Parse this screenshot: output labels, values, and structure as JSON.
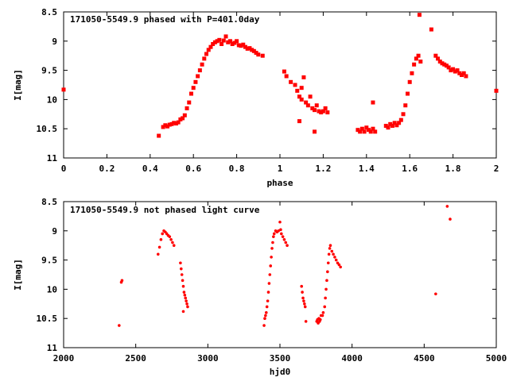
{
  "chart_data": [
    {
      "type": "scatter",
      "title": "171050-5549.9 phased with P=401.0day",
      "xlabel": "phase",
      "ylabel": "I[mag]",
      "xlim": [
        0,
        2
      ],
      "ylim": [
        8.5,
        11
      ],
      "y_inverted": true,
      "xticks": [
        0,
        0.2,
        0.4,
        0.6,
        0.8,
        1,
        1.2,
        1.4,
        1.6,
        1.8,
        2
      ],
      "xtick_labels": [
        "0",
        "0.2",
        "0.4",
        "0.6",
        "0.8",
        "1",
        "1.2",
        "1.4",
        "1.6",
        "1.8",
        "2"
      ],
      "yticks": [
        8.5,
        9,
        9.5,
        10,
        10.5,
        11
      ],
      "ytick_labels": [
        "8.5",
        "9",
        "9.5",
        "10",
        "10.5",
        "11"
      ],
      "marker_color": "#ff0000",
      "marker": "square",
      "series": [
        {
          "values": [
            [
              0.0,
              9.83
            ],
            [
              0.44,
              10.62
            ],
            [
              0.46,
              10.47
            ],
            [
              0.47,
              10.44
            ],
            [
              0.48,
              10.46
            ],
            [
              0.49,
              10.43
            ],
            [
              0.5,
              10.42
            ],
            [
              0.51,
              10.4
            ],
            [
              0.52,
              10.41
            ],
            [
              0.53,
              10.39
            ],
            [
              0.54,
              10.34
            ],
            [
              0.55,
              10.32
            ],
            [
              0.56,
              10.27
            ],
            [
              0.57,
              10.15
            ],
            [
              0.58,
              10.05
            ],
            [
              0.59,
              9.9
            ],
            [
              0.6,
              9.8
            ],
            [
              0.61,
              9.7
            ],
            [
              0.62,
              9.6
            ],
            [
              0.63,
              9.5
            ],
            [
              0.64,
              9.4
            ],
            [
              0.65,
              9.3
            ],
            [
              0.66,
              9.22
            ],
            [
              0.67,
              9.15
            ],
            [
              0.68,
              9.1
            ],
            [
              0.69,
              9.05
            ],
            [
              0.7,
              9.02
            ],
            [
              0.71,
              9.0
            ],
            [
              0.72,
              8.98
            ],
            [
              0.73,
              9.05
            ],
            [
              0.74,
              8.99
            ],
            [
              0.75,
              8.92
            ],
            [
              0.76,
              9.02
            ],
            [
              0.77,
              9.0
            ],
            [
              0.78,
              9.05
            ],
            [
              0.79,
              9.03
            ],
            [
              0.8,
              9.0
            ],
            [
              0.81,
              9.07
            ],
            [
              0.82,
              9.08
            ],
            [
              0.83,
              9.06
            ],
            [
              0.84,
              9.1
            ],
            [
              0.85,
              9.13
            ],
            [
              0.86,
              9.12
            ],
            [
              0.87,
              9.15
            ],
            [
              0.88,
              9.17
            ],
            [
              0.89,
              9.2
            ],
            [
              0.9,
              9.23
            ],
            [
              0.92,
              9.25
            ],
            [
              1.02,
              9.52
            ],
            [
              1.03,
              9.6
            ],
            [
              1.05,
              9.7
            ],
            [
              1.07,
              9.75
            ],
            [
              1.08,
              9.85
            ],
            [
              1.09,
              9.95
            ],
            [
              1.1,
              10.0
            ],
            [
              1.1,
              9.8
            ],
            [
              1.11,
              9.62
            ],
            [
              1.12,
              10.05
            ],
            [
              1.13,
              10.1
            ],
            [
              1.14,
              9.95
            ],
            [
              1.15,
              10.15
            ],
            [
              1.16,
              10.18
            ],
            [
              1.17,
              10.1
            ],
            [
              1.18,
              10.2
            ],
            [
              1.19,
              10.22
            ],
            [
              1.2,
              10.2
            ],
            [
              1.21,
              10.15
            ],
            [
              1.22,
              10.22
            ],
            [
              1.09,
              10.37
            ],
            [
              1.16,
              10.55
            ],
            [
              1.36,
              10.52
            ],
            [
              1.37,
              10.55
            ],
            [
              1.38,
              10.5
            ],
            [
              1.39,
              10.55
            ],
            [
              1.4,
              10.48
            ],
            [
              1.41,
              10.52
            ],
            [
              1.42,
              10.55
            ],
            [
              1.43,
              10.5
            ],
            [
              1.44,
              10.55
            ],
            [
              1.43,
              10.05
            ],
            [
              1.49,
              10.45
            ],
            [
              1.5,
              10.48
            ],
            [
              1.51,
              10.42
            ],
            [
              1.52,
              10.45
            ],
            [
              1.53,
              10.4
            ],
            [
              1.54,
              10.44
            ],
            [
              1.55,
              10.4
            ],
            [
              1.56,
              10.35
            ],
            [
              1.57,
              10.25
            ],
            [
              1.58,
              10.1
            ],
            [
              1.59,
              9.9
            ],
            [
              1.6,
              9.7
            ],
            [
              1.61,
              9.55
            ],
            [
              1.62,
              9.4
            ],
            [
              1.63,
              9.3
            ],
            [
              1.64,
              9.25
            ],
            [
              1.65,
              9.35
            ],
            [
              1.645,
              8.55
            ],
            [
              1.7,
              8.8
            ],
            [
              1.72,
              9.25
            ],
            [
              1.73,
              9.3
            ],
            [
              1.74,
              9.35
            ],
            [
              1.75,
              9.38
            ],
            [
              1.76,
              9.4
            ],
            [
              1.77,
              9.42
            ],
            [
              1.78,
              9.45
            ],
            [
              1.79,
              9.5
            ],
            [
              1.8,
              9.48
            ],
            [
              1.81,
              9.52
            ],
            [
              1.82,
              9.5
            ],
            [
              1.83,
              9.55
            ],
            [
              1.84,
              9.58
            ],
            [
              1.85,
              9.55
            ],
            [
              1.86,
              9.6
            ],
            [
              2.0,
              9.85
            ]
          ]
        }
      ]
    },
    {
      "type": "scatter",
      "title": "171050-5549.9 not phased light curve",
      "xlabel": "hjd0",
      "ylabel": "I[mag]",
      "xlim": [
        2000,
        5000
      ],
      "ylim": [
        8.5,
        11
      ],
      "y_inverted": true,
      "xticks": [
        2000,
        2500,
        3000,
        3500,
        4000,
        4500,
        5000
      ],
      "xtick_labels": [
        "2000",
        "2500",
        "3000",
        "3500",
        "4000",
        "4500",
        "5000"
      ],
      "yticks": [
        8.5,
        9,
        9.5,
        10,
        10.5,
        11
      ],
      "ytick_labels": [
        "8.5",
        "9",
        "9.5",
        "10",
        "10.5",
        "11"
      ],
      "marker_color": "#ff0000",
      "marker": "dot",
      "series": [
        {
          "values": [
            [
              2400,
              9.88
            ],
            [
              2405,
              9.85
            ],
            [
              2655,
              9.4
            ],
            [
              2665,
              9.28
            ],
            [
              2675,
              9.15
            ],
            [
              2685,
              9.05
            ],
            [
              2695,
              9.0
            ],
            [
              2705,
              9.02
            ],
            [
              2715,
              9.05
            ],
            [
              2725,
              9.08
            ],
            [
              2735,
              9.1
            ],
            [
              2745,
              9.15
            ],
            [
              2755,
              9.2
            ],
            [
              2765,
              9.25
            ],
            [
              2810,
              9.55
            ],
            [
              2815,
              9.65
            ],
            [
              2820,
              9.75
            ],
            [
              2825,
              9.85
            ],
            [
              2830,
              9.95
            ],
            [
              2835,
              10.05
            ],
            [
              2840,
              10.1
            ],
            [
              2845,
              10.15
            ],
            [
              2850,
              10.2
            ],
            [
              2855,
              10.25
            ],
            [
              2860,
              10.3
            ],
            [
              2830,
              10.38
            ],
            [
              2385,
              10.62
            ],
            [
              3390,
              10.62
            ],
            [
              3395,
              10.5
            ],
            [
              3400,
              10.45
            ],
            [
              3405,
              10.4
            ],
            [
              3410,
              10.3
            ],
            [
              3415,
              10.2
            ],
            [
              3420,
              10.05
            ],
            [
              3425,
              9.9
            ],
            [
              3430,
              9.75
            ],
            [
              3435,
              9.6
            ],
            [
              3440,
              9.45
            ],
            [
              3445,
              9.3
            ],
            [
              3450,
              9.2
            ],
            [
              3455,
              9.1
            ],
            [
              3460,
              9.05
            ],
            [
              3470,
              9.0
            ],
            [
              3480,
              9.02
            ],
            [
              3490,
              9.0
            ],
            [
              3500,
              8.85
            ],
            [
              3505,
              8.98
            ],
            [
              3510,
              9.05
            ],
            [
              3520,
              9.1
            ],
            [
              3530,
              9.15
            ],
            [
              3540,
              9.2
            ],
            [
              3550,
              9.25
            ],
            [
              3650,
              9.95
            ],
            [
              3655,
              10.05
            ],
            [
              3660,
              10.15
            ],
            [
              3665,
              10.2
            ],
            [
              3670,
              10.25
            ],
            [
              3675,
              10.3
            ],
            [
              3680,
              10.55
            ],
            [
              3755,
              10.55
            ],
            [
              3760,
              10.52
            ],
            [
              3765,
              10.58
            ],
            [
              3770,
              10.5
            ],
            [
              3775,
              10.55
            ],
            [
              3780,
              10.52
            ],
            [
              3785,
              10.45
            ],
            [
              3795,
              10.45
            ],
            [
              3800,
              10.4
            ],
            [
              3810,
              10.3
            ],
            [
              3815,
              10.15
            ],
            [
              3820,
              10.0
            ],
            [
              3825,
              9.85
            ],
            [
              3830,
              9.7
            ],
            [
              3835,
              9.55
            ],
            [
              3840,
              9.4
            ],
            [
              3845,
              9.3
            ],
            [
              3850,
              9.25
            ],
            [
              3860,
              9.35
            ],
            [
              3870,
              9.4
            ],
            [
              3880,
              9.45
            ],
            [
              3890,
              9.5
            ],
            [
              3900,
              9.55
            ],
            [
              3910,
              9.58
            ],
            [
              3920,
              9.62
            ],
            [
              4580,
              10.08
            ],
            [
              4660,
              8.58
            ],
            [
              4680,
              8.8
            ]
          ]
        }
      ]
    }
  ]
}
